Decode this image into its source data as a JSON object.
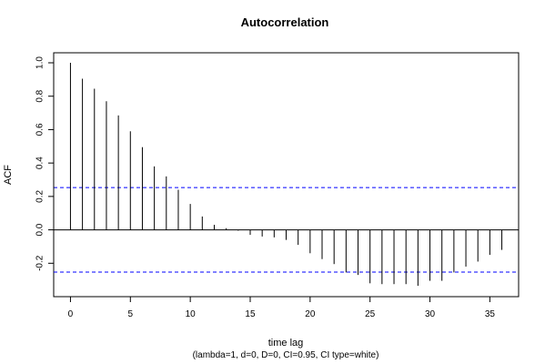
{
  "chart_data": {
    "type": "bar",
    "title": "Autocorrelation",
    "xlabel": "time lag",
    "subtitle": "(lambda=1, d=0, D=0, CI=0.95, CI type=white)",
    "ylabel": "ACF",
    "xlim": [
      -1.4,
      37.4
    ],
    "ylim": [
      -0.4,
      1.06
    ],
    "x_ticks": [
      0,
      5,
      10,
      15,
      20,
      25,
      30,
      35
    ],
    "y_ticks": [
      -0.2,
      0.0,
      0.2,
      0.4,
      0.6,
      0.8,
      1.0
    ],
    "x_tick_labels": [
      "0",
      "5",
      "10",
      "15",
      "20",
      "25",
      "30",
      "35"
    ],
    "y_tick_labels": [
      "-0.2",
      "0.0",
      "0.2",
      "0.4",
      "0.6",
      "0.8",
      "1.0"
    ],
    "ci": [
      0.253,
      -0.253
    ],
    "ci_color": "#0000ff",
    "bar_color": "#000000",
    "lags": [
      0,
      1,
      2,
      3,
      4,
      5,
      6,
      7,
      8,
      9,
      10,
      11,
      12,
      13,
      14,
      15,
      16,
      17,
      18,
      19,
      20,
      21,
      22,
      23,
      24,
      25,
      26,
      27,
      28,
      29,
      30,
      31,
      32,
      33,
      34,
      35,
      36
    ],
    "values": [
      1.0,
      0.905,
      0.845,
      0.77,
      0.685,
      0.59,
      0.495,
      0.38,
      0.32,
      0.24,
      0.155,
      0.08,
      0.03,
      0.01,
      -0.005,
      -0.03,
      -0.04,
      -0.045,
      -0.06,
      -0.09,
      -0.14,
      -0.175,
      -0.205,
      -0.255,
      -0.27,
      -0.32,
      -0.325,
      -0.325,
      -0.325,
      -0.335,
      -0.305,
      -0.305,
      -0.255,
      -0.22,
      -0.19,
      -0.15,
      -0.12
    ]
  }
}
